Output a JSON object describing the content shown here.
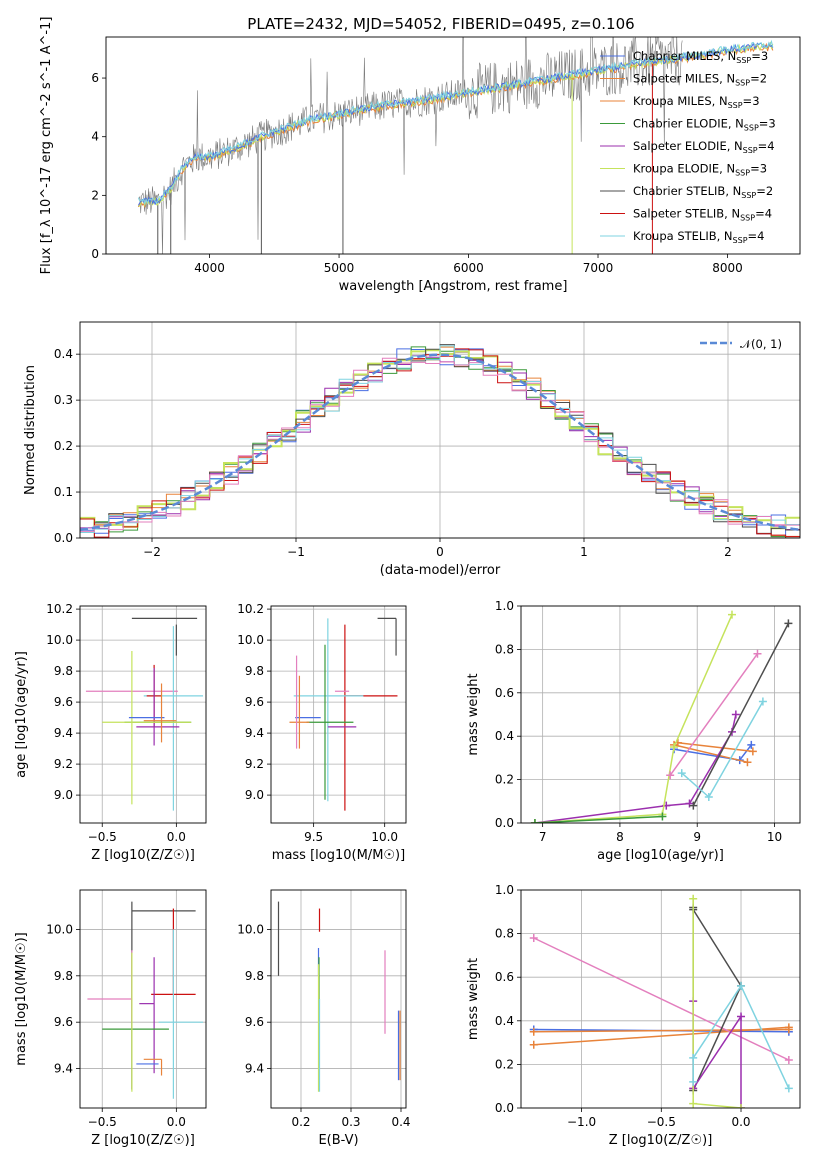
{
  "figure": {
    "title": "PLATE=2432, MJD=54052, FIBERID=0495, z=0.106"
  },
  "colors": {
    "Chabrier MILES": "#4a6fe3",
    "Salpeter MILES": "#e8833a",
    "Kroupa MILES": "#e8833a",
    "Chabrier ELODIE": "#3a9a3a",
    "Salpeter ELODIE": "#9b2fae",
    "Kroupa ELODIE": "#c5e35c",
    "Chabrier STELIB": "#4d4d4d",
    "Salpeter STELIB": "#cc1111",
    "Kroupa STELIB": "#7fd3e0",
    "pink": "#e37fbe",
    "gaussian": "#5a8ad6",
    "spectrum": "#7a7a7a"
  },
  "chart_data": [
    {
      "id": "spectrum",
      "type": "line",
      "title": "PLATE=2432, MJD=54052, FIBERID=0495, z=0.106",
      "xlabel": "wavelength [Angstrom, rest frame]",
      "ylabel": "Flux [f_λ 10^-17 erg cm^-2 s^-1 A^-1]",
      "xlim": [
        3200,
        8560
      ],
      "ylim": [
        0,
        7.4
      ],
      "xticks": [
        4000,
        5000,
        6000,
        7000,
        8000
      ],
      "yticks": [
        0,
        2,
        4,
        6
      ],
      "grid": false,
      "legend_position": "top-right",
      "legend": [
        {
          "name": "Chabrier MILES",
          "nssp": "3"
        },
        {
          "name": "Salpeter MILES",
          "nssp": "2"
        },
        {
          "name": "Kroupa MILES",
          "nssp": "3"
        },
        {
          "name": "Chabrier ELODIE",
          "nssp": "3"
        },
        {
          "name": "Salpeter ELODIE",
          "nssp": "4"
        },
        {
          "name": "Kroupa ELODIE",
          "nssp": "3"
        },
        {
          "name": "Chabrier STELIB",
          "nssp": "2"
        },
        {
          "name": "Salpeter STELIB",
          "nssp": "4"
        },
        {
          "name": "Kroupa STELIB",
          "nssp": "4"
        }
      ],
      "continuum": {
        "x": [
          3450,
          3600,
          3700,
          3800,
          3900,
          4000,
          4200,
          4400,
          4600,
          4800,
          5000,
          5200,
          5400,
          5600,
          5800,
          6000,
          6200,
          6400,
          6600,
          6800,
          7000,
          7200,
          7400,
          7600,
          7800,
          8000,
          8200,
          8350
        ],
        "y": [
          1.75,
          1.8,
          2.2,
          3.0,
          3.3,
          3.3,
          3.6,
          4.0,
          4.3,
          4.6,
          4.75,
          4.95,
          5.1,
          5.2,
          5.35,
          5.5,
          5.65,
          5.8,
          5.95,
          6.1,
          6.25,
          6.4,
          6.55,
          6.65,
          6.8,
          6.95,
          7.05,
          7.1
        ]
      }
    },
    {
      "id": "residuals",
      "type": "line",
      "xlabel": "(data-model)/error",
      "ylabel": "Normed distribution",
      "xlim": [
        -2.5,
        2.5
      ],
      "ylim": [
        0,
        0.47
      ],
      "xticks": [
        -2,
        -1,
        0,
        1,
        2
      ],
      "xtick_labels": [
        "−2",
        "−1",
        "0",
        "1",
        "2"
      ],
      "yticks": [
        0.0,
        0.1,
        0.2,
        0.3,
        0.4
      ],
      "ytick_labels": [
        "0.0",
        "0.1",
        "0.2",
        "0.3",
        "0.4"
      ],
      "grid": true,
      "legend": [
        {
          "name": "𝒩(0, 1)",
          "style": "dashed"
        }
      ],
      "legend_position": "top-right",
      "gaussian": {
        "mean": 0,
        "sigma": 1
      }
    },
    {
      "id": "age-vs-Z",
      "type": "scatter",
      "xlabel": "Z [log10(Z/Z☉)]",
      "ylabel": "age [log10(age/yr)]",
      "xlim": [
        -0.65,
        0.2
      ],
      "ylim": [
        8.82,
        10.22
      ],
      "xticks": [
        -0.5,
        0.0
      ],
      "xtick_labels": [
        "−0.5",
        "0.0"
      ],
      "yticks": [
        9.0,
        9.2,
        9.4,
        9.6,
        9.8,
        10.0,
        10.2
      ],
      "ytick_labels": [
        "9.0",
        "9.2",
        "9.4",
        "9.6",
        "9.8",
        "10.0",
        "10.2"
      ],
      "grid": true,
      "points": [
        {
          "color": "Chabrier STELIB",
          "x": -0.3,
          "y": 10.14,
          "xerr": [
            0.0,
            0.44
          ],
          "yerr": [
            0.0,
            0.0
          ]
        },
        {
          "color": "Chabrier STELIB",
          "x": 0.0,
          "y": 10.0,
          "xerr": [
            0.0,
            0.0
          ],
          "yerr": [
            0.1,
            0.1
          ]
        },
        {
          "color": "pink",
          "x": -0.3,
          "y": 9.67,
          "xerr": [
            0.31,
            0.31
          ],
          "yerr": [
            0.0,
            0.0
          ]
        },
        {
          "color": "Kroupa STELIB",
          "x": -0.02,
          "y": 9.64,
          "xerr": [
            0.2,
            0.2
          ],
          "yerr": [
            0.74,
            0.45
          ]
        },
        {
          "color": "Salpeter STELIB",
          "x": -0.15,
          "y": 9.64,
          "xerr": [
            0.05,
            0.05
          ],
          "yerr": [
            0.2,
            0.2
          ]
        },
        {
          "color": "Salpeter ELODIE",
          "x": -0.15,
          "y": 9.44,
          "xerr": [
            0.12,
            0.17
          ],
          "yerr": [
            0.12,
            0.38
          ]
        },
        {
          "color": "Chabrier ELODIE",
          "x": -0.15,
          "y": 9.47,
          "xerr": [
            0.2,
            0.25
          ],
          "yerr": [
            0.0,
            0.0
          ]
        },
        {
          "color": "Kroupa ELODIE",
          "x": -0.3,
          "y": 9.47,
          "xerr": [
            0.2,
            0.4
          ],
          "yerr": [
            0.53,
            0.46
          ]
        },
        {
          "color": "Chabrier MILES",
          "x": -0.2,
          "y": 9.5,
          "xerr": [
            0.12,
            0.12
          ],
          "yerr": [
            0.0,
            0.0
          ]
        },
        {
          "color": "Salpeter MILES",
          "x": -0.1,
          "y": 9.48,
          "xerr": [
            0.12,
            0.1
          ],
          "yerr": [
            0.14,
            0.24
          ]
        }
      ]
    },
    {
      "id": "age-vs-mass",
      "type": "scatter",
      "xlabel": "mass [log10(M/M☉)]",
      "xlim": [
        9.2,
        10.15
      ],
      "ylim": [
        8.82,
        10.22
      ],
      "xticks": [
        9.5,
        10.0
      ],
      "xtick_labels": [
        "9.5",
        "10.0"
      ],
      "yticks": [
        9.0,
        9.2,
        9.4,
        9.6,
        9.8,
        10.0,
        10.2
      ],
      "ytick_labels": [
        "9.0",
        "9.2",
        "9.4",
        "9.6",
        "9.8",
        "10.0",
        "10.2"
      ],
      "grid": true,
      "points": [
        {
          "color": "Chabrier STELIB",
          "x": 10.08,
          "y": 10.14,
          "xerr": [
            0.13,
            0.0
          ],
          "yerr": [
            0.24,
            0.0
          ]
        },
        {
          "color": "Salpeter STELIB",
          "x": 9.72,
          "y": 9.64,
          "xerr": [
            0.0,
            0.37
          ],
          "yerr": [
            0.74,
            0.46
          ]
        },
        {
          "color": "pink",
          "x": 9.75,
          "y": 9.67,
          "xerr": [
            0.1,
            0.0
          ],
          "yerr": [
            0.0,
            0.0
          ]
        },
        {
          "color": "Kroupa STELIB",
          "x": 9.6,
          "y": 9.64,
          "xerr": [
            0.24,
            0.25
          ],
          "yerr": [
            0.68,
            0.5
          ]
        },
        {
          "color": "Chabrier ELODIE",
          "x": 9.58,
          "y": 9.47,
          "xerr": [
            0.13,
            0.2
          ],
          "yerr": [
            0.5,
            0.5
          ]
        },
        {
          "color": "Salpeter ELODIE",
          "x": 9.68,
          "y": 9.44,
          "xerr": [
            0.08,
            0.12
          ],
          "yerr": [
            0.0,
            0.0
          ]
        },
        {
          "color": "Chabrier MILES",
          "x": 9.45,
          "y": 9.5,
          "xerr": [
            0.08,
            0.1
          ],
          "yerr": [
            0.0,
            0.0
          ]
        },
        {
          "color": "Salpeter MILES",
          "x": 9.4,
          "y": 9.47,
          "xerr": [
            0.07,
            0.07
          ],
          "yerr": [
            0.17,
            0.3
          ]
        },
        {
          "color": "pink",
          "x": 9.38,
          "y": 9.5,
          "xerr": [
            0.0,
            0.0
          ],
          "yerr": [
            0.2,
            0.4
          ]
        }
      ]
    },
    {
      "id": "massweight-vs-age",
      "type": "line",
      "xlabel": "age [log10(age/yr)]",
      "ylabel": "mass weight",
      "xlim": [
        6.72,
        10.33
      ],
      "ylim": [
        0,
        1.0
      ],
      "xticks": [
        7,
        8,
        9,
        10
      ],
      "xtick_labels": [
        "7",
        "8",
        "9",
        "10"
      ],
      "yticks": [
        0.0,
        0.2,
        0.4,
        0.6,
        0.8,
        1.0
      ],
      "ytick_labels": [
        "0.0",
        "0.2",
        "0.4",
        "0.6",
        "0.8",
        "1.0"
      ],
      "grid": true,
      "series": [
        {
          "color": "Chabrier MILES",
          "x": [
            8.7,
            9.55,
            9.7
          ],
          "y": [
            0.34,
            0.29,
            0.36
          ]
        },
        {
          "color": "Salpeter MILES",
          "x": [
            8.7,
            9.65
          ],
          "y": [
            0.36,
            0.28
          ]
        },
        {
          "color": "Kroupa MILES",
          "x": [
            8.75,
            9.72
          ],
          "y": [
            0.37,
            0.33
          ]
        },
        {
          "color": "Salpeter ELODIE",
          "x": [
            6.9,
            8.6,
            8.9,
            9.45,
            9.5
          ],
          "y": [
            0.0,
            0.08,
            0.09,
            0.42,
            0.5
          ]
        },
        {
          "color": "Kroupa ELODIE",
          "x": [
            6.9,
            8.55,
            8.7,
            9.45
          ],
          "y": [
            0.0,
            0.04,
            0.35,
            0.96
          ]
        },
        {
          "color": "Chabrier ELODIE",
          "x": [
            6.9,
            8.55
          ],
          "y": [
            0.0,
            0.03
          ]
        },
        {
          "color": "Chabrier STELIB",
          "x": [
            8.95,
            10.18
          ],
          "y": [
            0.08,
            0.92
          ]
        },
        {
          "color": "pink",
          "x": [
            8.65,
            9.78
          ],
          "y": [
            0.22,
            0.78
          ]
        },
        {
          "color": "Kroupa STELIB",
          "x": [
            8.8,
            9.15,
            9.85
          ],
          "y": [
            0.23,
            0.12,
            0.56
          ]
        }
      ]
    },
    {
      "id": "mass-vs-Z",
      "type": "scatter",
      "xlabel": "Z [log10(Z/Z☉)]",
      "ylabel": "mass [log10(M/M☉)]",
      "xlim": [
        -0.65,
        0.2
      ],
      "ylim": [
        9.23,
        10.17
      ],
      "xticks": [
        -0.5,
        0.0
      ],
      "xtick_labels": [
        "−0.5",
        "0.0"
      ],
      "yticks": [
        9.4,
        9.6,
        9.8,
        10.0
      ],
      "ytick_labels": [
        "9.4",
        "9.6",
        "9.8",
        "10.0"
      ],
      "grid": true,
      "points": [
        {
          "color": "Chabrier STELIB",
          "x": -0.3,
          "y": 10.08,
          "xerr": [
            0.0,
            0.43
          ],
          "yerr": [
            0.77,
            0.04
          ]
        },
        {
          "color": "Salpeter STELIB",
          "x": -0.02,
          "y": 9.72,
          "xerr": [
            0.15,
            0.15
          ],
          "yerr": [
            0.0,
            0.37
          ]
        },
        {
          "color": "pink",
          "x": -0.3,
          "y": 9.7,
          "xerr": [
            0.3,
            0.0
          ],
          "yerr": [
            0.1,
            0.21
          ]
        },
        {
          "color": "Kroupa STELIB",
          "x": -0.02,
          "y": 9.6,
          "xerr": [
            0.1,
            0.2
          ],
          "yerr": [
            0.33,
            0.4
          ]
        },
        {
          "color": "Salpeter ELODIE",
          "x": -0.15,
          "y": 9.68,
          "xerr": [
            0.1,
            0.0
          ],
          "yerr": [
            0.3,
            0.2
          ]
        },
        {
          "color": "Chabrier ELODIE",
          "x": -0.3,
          "y": 9.57,
          "xerr": [
            0.2,
            0.25
          ],
          "yerr": [
            0.0,
            0.0
          ]
        },
        {
          "color": "Kroupa ELODIE",
          "x": -0.3,
          "y": 9.6,
          "xerr": [
            0.0,
            0.0
          ],
          "yerr": [
            0.3,
            0.3
          ]
        },
        {
          "color": "Salpeter MILES",
          "x": -0.1,
          "y": 9.44,
          "xerr": [
            0.12,
            0.0
          ],
          "yerr": [
            0.07,
            0.0
          ]
        },
        {
          "color": "Chabrier MILES",
          "x": -0.2,
          "y": 9.42,
          "xerr": [
            0.07,
            0.08
          ],
          "yerr": [
            0.0,
            0.0
          ]
        }
      ]
    },
    {
      "id": "mass-vs-ebv",
      "type": "scatter",
      "xlabel": "E(B-V)",
      "xlim": [
        0.14,
        0.41
      ],
      "ylim": [
        9.23,
        10.17
      ],
      "xticks": [
        0.2,
        0.3,
        0.4
      ],
      "xtick_labels": [
        "0.2",
        "0.3",
        "0.4"
      ],
      "yticks": [
        9.4,
        9.6,
        9.8,
        10.0
      ],
      "ytick_labels": [
        "9.4",
        "9.6",
        "9.8",
        "10.0"
      ],
      "grid": true,
      "points": [
        {
          "color": "Chabrier STELIB",
          "x": 0.155,
          "y": 9.96,
          "xerr": [
            0.0,
            0.0
          ],
          "yerr": [
            0.16,
            0.16
          ]
        },
        {
          "color": "Salpeter STELIB",
          "x": 0.237,
          "y": 10.04,
          "xerr": [
            0.0,
            0.0
          ],
          "yerr": [
            0.05,
            0.05
          ]
        },
        {
          "color": "Chabrier MILES",
          "x": 0.235,
          "y": 9.8,
          "xerr": [
            0.0,
            0.0
          ],
          "yerr": [
            0.0,
            0.12
          ]
        },
        {
          "color": "Chabrier ELODIE",
          "x": 0.236,
          "y": 9.6,
          "xerr": [
            0.0,
            0.0
          ],
          "yerr": [
            0.28,
            0.28
          ]
        },
        {
          "color": "Kroupa ELODIE",
          "x": 0.235,
          "y": 9.55,
          "xerr": [
            0.0,
            0.0
          ],
          "yerr": [
            0.25,
            0.3
          ]
        },
        {
          "color": "Kroupa STELIB",
          "x": 0.237,
          "y": 9.5,
          "xerr": [
            0.0,
            0.0
          ],
          "yerr": [
            0.2,
            0.2
          ]
        },
        {
          "color": "pink",
          "x": 0.368,
          "y": 9.73,
          "xerr": [
            0.0,
            0.0
          ],
          "yerr": [
            0.18,
            0.18
          ]
        },
        {
          "color": "Salpeter MILES",
          "x": 0.398,
          "y": 9.5,
          "xerr": [
            0.0,
            0.0
          ],
          "yerr": [
            0.15,
            0.15
          ]
        },
        {
          "color": "Chabrier MILES",
          "x": 0.395,
          "y": 9.5,
          "xerr": [
            0.0,
            0.0
          ],
          "yerr": [
            0.15,
            0.15
          ]
        }
      ]
    },
    {
      "id": "massweight-vs-Z",
      "type": "line",
      "xlabel": "Z [log10(Z/Z☉)]",
      "ylabel": "mass weight",
      "xlim": [
        -1.38,
        0.37
      ],
      "ylim": [
        0,
        1.0
      ],
      "xticks": [
        -1.0,
        -0.5,
        0.0
      ],
      "xtick_labels": [
        "−1.0",
        "−0.5",
        "0.0"
      ],
      "yticks": [
        0.0,
        0.2,
        0.4,
        0.6,
        0.8,
        1.0
      ],
      "ytick_labels": [
        "0.0",
        "0.2",
        "0.4",
        "0.6",
        "0.8",
        "1.0"
      ],
      "grid": true,
      "series": [
        {
          "color": "Chabrier MILES",
          "x": [
            -1.3,
            0.3
          ],
          "y": [
            0.36,
            0.35
          ]
        },
        {
          "color": "Salpeter MILES",
          "x": [
            -1.3,
            0.3
          ],
          "y": [
            0.29,
            0.37
          ]
        },
        {
          "color": "Kroupa MILES",
          "x": [
            -1.3,
            0.3
          ],
          "y": [
            0.35,
            0.36
          ]
        },
        {
          "color": "pink",
          "x": [
            -1.3,
            0.3
          ],
          "y": [
            0.78,
            0.22
          ]
        },
        {
          "color": "Chabrier STELIB",
          "x": [
            -0.3,
            -0.3,
            0.0,
            -0.3
          ],
          "y": [
            0.92,
            0.08,
            0.56,
            0.91
          ]
        },
        {
          "color": "Salpeter ELODIE",
          "x": [
            -0.3,
            -0.3,
            0.0,
            0.0
          ],
          "y": [
            0.49,
            0.09,
            0.42,
            0.0
          ]
        },
        {
          "color": "Kroupa ELODIE",
          "x": [
            -0.3,
            -0.3,
            0.0
          ],
          "y": [
            0.96,
            0.02,
            0.0
          ]
        },
        {
          "color": "Kroupa STELIB",
          "x": [
            -0.3,
            -0.3,
            0.0,
            0.3
          ],
          "y": [
            0.12,
            0.23,
            0.56,
            0.09
          ]
        }
      ]
    }
  ]
}
